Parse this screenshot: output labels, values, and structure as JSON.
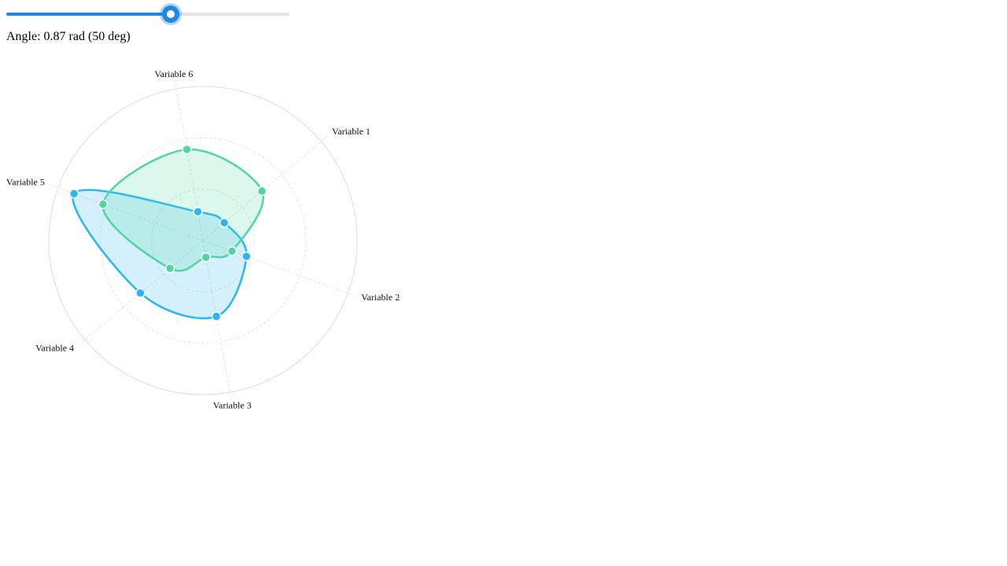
{
  "slider": {
    "value": 0.87,
    "min": 0,
    "max": 1.5,
    "fill_color": "#1e88e5",
    "track_color": "#e4e4ec"
  },
  "angle_readout": "Angle: 0.87 rad (50 deg)",
  "chart_data": {
    "type": "radar",
    "labels": [
      "Variable 1",
      "Variable 2",
      "Variable 3",
      "Variable 4",
      "Variable 5",
      "Variable 6"
    ],
    "rotation_deg": 50,
    "rlim": [
      0,
      1
    ],
    "grid_rings": [
      0.333,
      0.667,
      1.0
    ],
    "series": [
      {
        "color": "#29b6f6",
        "fill": "rgba(41,182,246,0.2)",
        "values": [
          0.18,
          0.3,
          0.5,
          0.53,
          0.89,
          0.19
        ]
      },
      {
        "color": "#4fd6a1",
        "fill": "rgba(79,214,161,0.2)",
        "values": [
          0.5,
          0.2,
          0.11,
          0.28,
          0.69,
          0.6
        ]
      }
    ]
  }
}
